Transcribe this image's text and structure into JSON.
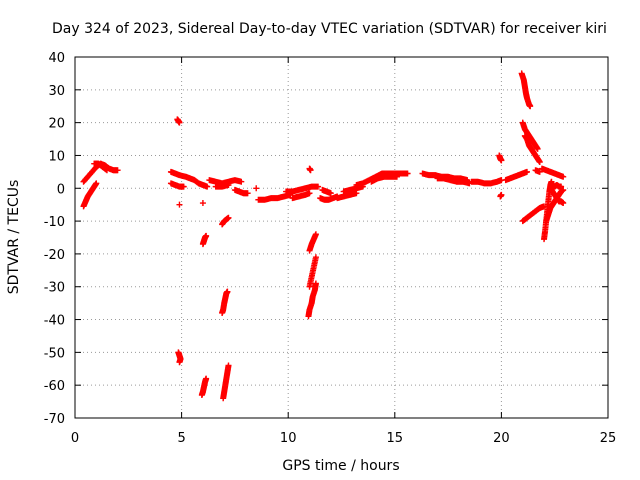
{
  "chart_data": {
    "type": "scatter",
    "title": "Day 324 of 2023, Sidereal Day-to-day VTEC variation (SDTVAR) for receiver kiri",
    "xlabel": "GPS time / hours",
    "ylabel": "SDTVAR / TECUs",
    "xlim": [
      0,
      25
    ],
    "ylim": [
      -70,
      40
    ],
    "xticks": [
      0,
      5,
      10,
      15,
      20,
      25
    ],
    "yticks": [
      40,
      30,
      20,
      10,
      0,
      -10,
      -20,
      -30,
      -40,
      -50,
      -60,
      -70
    ],
    "grid": true,
    "marker": "+",
    "color": "#ff0000",
    "series": [
      {
        "name": "SDTVAR",
        "segments": [
          [
            [
              0.4,
              -5.5
            ],
            [
              0.5,
              -4
            ],
            [
              0.6,
              -2.5
            ],
            [
              0.7,
              -1.5
            ],
            [
              0.8,
              -0.5
            ],
            [
              0.9,
              0.5
            ],
            [
              1.0,
              1.5
            ]
          ],
          [
            [
              0.4,
              2
            ],
            [
              0.6,
              3.5
            ],
            [
              0.8,
              5
            ],
            [
              1.0,
              6.5
            ],
            [
              1.2,
              7.5
            ],
            [
              1.4,
              7
            ],
            [
              1.6,
              6
            ],
            [
              1.8,
              5.5
            ],
            [
              2.0,
              5.5
            ]
          ],
          [
            [
              0.9,
              7.5
            ],
            [
              1.1,
              7.5
            ],
            [
              1.3,
              6.5
            ],
            [
              1.5,
              5.5
            ]
          ],
          [
            [
              4.5,
              5
            ],
            [
              4.7,
              4.5
            ],
            [
              4.9,
              4
            ],
            [
              5.2,
              3.5
            ],
            [
              5.4,
              3
            ],
            [
              5.6,
              2.5
            ],
            [
              5.8,
              1.5
            ],
            [
              6.0,
              1
            ],
            [
              6.2,
              0.5
            ]
          ],
          [
            [
              4.5,
              1.5
            ],
            [
              4.7,
              1
            ],
            [
              4.9,
              0.5
            ],
            [
              5.1,
              0.5
            ]
          ],
          [
            [
              4.8,
              21
            ],
            [
              4.85,
              20.5
            ],
            [
              4.9,
              20
            ]
          ],
          [
            [
              4.9,
              -5
            ]
          ],
          [
            [
              4.85,
              -50
            ],
            [
              4.9,
              -51
            ],
            [
              4.95,
              -52
            ],
            [
              4.9,
              -53
            ]
          ],
          [
            [
              6.0,
              -17
            ],
            [
              6.05,
              -16
            ],
            [
              6.1,
              -15
            ],
            [
              6.15,
              -14.5
            ]
          ],
          [
            [
              6.0,
              -4.5
            ]
          ],
          [
            [
              5.95,
              -63
            ],
            [
              6.0,
              -62
            ],
            [
              6.05,
              -60.5
            ],
            [
              6.1,
              -59
            ],
            [
              6.15,
              -58
            ]
          ],
          [
            [
              6.3,
              2.5
            ],
            [
              6.6,
              2
            ],
            [
              6.9,
              1.5
            ],
            [
              7.2,
              2
            ],
            [
              7.5,
              2.5
            ],
            [
              7.8,
              2
            ]
          ],
          [
            [
              6.6,
              0.5
            ],
            [
              6.9,
              0.5
            ],
            [
              7.2,
              1
            ]
          ],
          [
            [
              6.9,
              -11
            ],
            [
              7.0,
              -10
            ],
            [
              7.1,
              -9.5
            ],
            [
              7.2,
              -9
            ]
          ],
          [
            [
              6.9,
              -38
            ],
            [
              6.95,
              -37
            ],
            [
              7.0,
              -35
            ],
            [
              7.05,
              -33.5
            ],
            [
              7.1,
              -32
            ],
            [
              7.15,
              -31.5
            ]
          ],
          [
            [
              6.95,
              -64
            ],
            [
              7.0,
              -62
            ],
            [
              7.05,
              -60
            ],
            [
              7.1,
              -58
            ],
            [
              7.15,
              -56
            ],
            [
              7.2,
              -54
            ]
          ],
          [
            [
              7.5,
              -0.5
            ],
            [
              7.7,
              -1
            ],
            [
              7.9,
              -1.5
            ],
            [
              8.1,
              -1.5
            ]
          ],
          [
            [
              8.5,
              0
            ]
          ],
          [
            [
              8.6,
              -3.5
            ],
            [
              8.9,
              -3.5
            ],
            [
              9.2,
              -3
            ],
            [
              9.5,
              -3
            ],
            [
              9.8,
              -2.5
            ],
            [
              10.1,
              -2
            ]
          ],
          [
            [
              9.9,
              -1
            ],
            [
              10.2,
              -1
            ],
            [
              10.5,
              -0.5
            ],
            [
              10.8,
              0
            ],
            [
              11.1,
              0.5
            ],
            [
              11.4,
              0.5
            ]
          ],
          [
            [
              10.2,
              -3
            ],
            [
              10.5,
              -2.5
            ],
            [
              10.8,
              -2
            ],
            [
              11.0,
              -1.5
            ]
          ],
          [
            [
              11.0,
              6
            ],
            [
              11.05,
              5.5
            ]
          ],
          [
            [
              11.0,
              -19
            ],
            [
              11.1,
              -17
            ],
            [
              11.2,
              -15.5
            ],
            [
              11.3,
              -14
            ]
          ],
          [
            [
              10.95,
              -39
            ],
            [
              11.0,
              -37
            ],
            [
              11.1,
              -35
            ],
            [
              11.15,
              -33
            ],
            [
              11.25,
              -31
            ],
            [
              11.3,
              -29
            ]
          ],
          [
            [
              11.0,
              -30
            ],
            [
              11.1,
              -27
            ],
            [
              11.2,
              -24
            ],
            [
              11.3,
              -21
            ]
          ],
          [
            [
              11.5,
              -3
            ],
            [
              11.7,
              -3.5
            ],
            [
              11.9,
              -3.5
            ],
            [
              12.1,
              -3
            ],
            [
              12.3,
              -2.5
            ]
          ],
          [
            [
              11.6,
              -0.5
            ],
            [
              11.8,
              -1
            ],
            [
              12.0,
              -1.5
            ]
          ],
          [
            [
              12.3,
              -3
            ],
            [
              12.6,
              -2.5
            ],
            [
              12.9,
              -2
            ],
            [
              13.2,
              -1.5
            ]
          ],
          [
            [
              12.6,
              -1
            ],
            [
              12.9,
              -0.5
            ],
            [
              13.2,
              0
            ],
            [
              13.5,
              0.5
            ]
          ],
          [
            [
              13.2,
              1
            ],
            [
              13.5,
              1.5
            ],
            [
              13.8,
              2.5
            ],
            [
              14.1,
              3.5
            ],
            [
              14.4,
              4.5
            ],
            [
              14.7,
              4.5
            ],
            [
              15.0,
              4.5
            ],
            [
              15.3,
              4.5
            ],
            [
              15.6,
              4.5
            ]
          ],
          [
            [
              13.9,
              2
            ],
            [
              14.2,
              3
            ],
            [
              14.5,
              3.5
            ],
            [
              14.8,
              3.5
            ],
            [
              15.1,
              3.5
            ]
          ],
          [
            [
              16.3,
              4.5
            ],
            [
              16.6,
              4
            ],
            [
              16.9,
              4
            ],
            [
              17.2,
              3.5
            ],
            [
              17.5,
              3.5
            ],
            [
              17.8,
              3
            ],
            [
              18.1,
              3
            ],
            [
              18.4,
              2.5
            ]
          ],
          [
            [
              17.0,
              3
            ],
            [
              17.3,
              3
            ],
            [
              17.6,
              2.5
            ],
            [
              17.9,
              2
            ],
            [
              18.2,
              2
            ],
            [
              18.5,
              1.5
            ]
          ],
          [
            [
              18.6,
              2
            ],
            [
              18.9,
              2
            ],
            [
              19.2,
              1.5
            ],
            [
              19.5,
              1.5
            ],
            [
              19.8,
              2
            ],
            [
              20.0,
              2.5
            ]
          ],
          [
            [
              19.9,
              10
            ],
            [
              19.95,
              9
            ],
            [
              20.0,
              8.5
            ]
          ],
          [
            [
              19.95,
              -2.5
            ],
            [
              20.0,
              -2
            ]
          ],
          [
            [
              20.2,
              2.5
            ],
            [
              20.4,
              3
            ],
            [
              20.6,
              3.5
            ],
            [
              20.8,
              4
            ],
            [
              21.0,
              4.5
            ],
            [
              21.2,
              5
            ]
          ],
          [
            [
              20.95,
              35
            ],
            [
              21.05,
              33
            ],
            [
              21.1,
              31
            ],
            [
              21.15,
              29
            ],
            [
              21.2,
              27.5
            ],
            [
              21.3,
              25.5
            ],
            [
              21.35,
              25
            ]
          ],
          [
            [
              21.0,
              20
            ],
            [
              21.1,
              18
            ],
            [
              21.2,
              17
            ],
            [
              21.3,
              16
            ],
            [
              21.4,
              15
            ],
            [
              21.5,
              14
            ],
            [
              21.6,
              13
            ],
            [
              21.7,
              12
            ]
          ],
          [
            [
              21.1,
              16
            ],
            [
              21.2,
              15
            ],
            [
              21.3,
              13
            ],
            [
              21.4,
              12
            ],
            [
              21.5,
              11
            ],
            [
              21.6,
              10
            ],
            [
              21.7,
              9
            ],
            [
              21.8,
              8
            ]
          ],
          [
            [
              21.0,
              -10
            ],
            [
              21.2,
              -9
            ],
            [
              21.4,
              -8
            ],
            [
              21.6,
              -7
            ],
            [
              21.8,
              -6
            ],
            [
              22.0,
              -5.5
            ]
          ],
          [
            [
              21.6,
              5.5
            ],
            [
              21.8,
              5
            ]
          ],
          [
            [
              21.9,
              6
            ],
            [
              22.1,
              5.5
            ],
            [
              22.3,
              5
            ],
            [
              22.5,
              4.5
            ],
            [
              22.7,
              4
            ],
            [
              22.9,
              3.5
            ]
          ],
          [
            [
              22.0,
              -15.5
            ],
            [
              22.05,
              -13
            ],
            [
              22.1,
              -10
            ],
            [
              22.15,
              -7
            ],
            [
              22.2,
              -4
            ],
            [
              22.25,
              -1
            ],
            [
              22.3,
              1
            ],
            [
              22.35,
              2
            ]
          ],
          [
            [
              22.1,
              -10
            ],
            [
              22.2,
              -8
            ],
            [
              22.3,
              -6
            ],
            [
              22.4,
              -5
            ],
            [
              22.5,
              -4
            ],
            [
              22.6,
              -3
            ],
            [
              22.7,
              -2
            ],
            [
              22.8,
              -1
            ],
            [
              22.9,
              -0.5
            ]
          ],
          [
            [
              22.3,
              0
            ],
            [
              22.4,
              -1
            ],
            [
              22.5,
              -2
            ],
            [
              22.6,
              -3
            ],
            [
              22.7,
              -4
            ],
            [
              22.8,
              -4
            ],
            [
              22.9,
              -4.5
            ]
          ],
          [
            [
              22.4,
              1
            ],
            [
              22.5,
              0.5
            ],
            [
              22.6,
              1
            ],
            [
              22.7,
              0.5
            ],
            [
              22.8,
              0.5
            ]
          ]
        ]
      }
    ]
  }
}
